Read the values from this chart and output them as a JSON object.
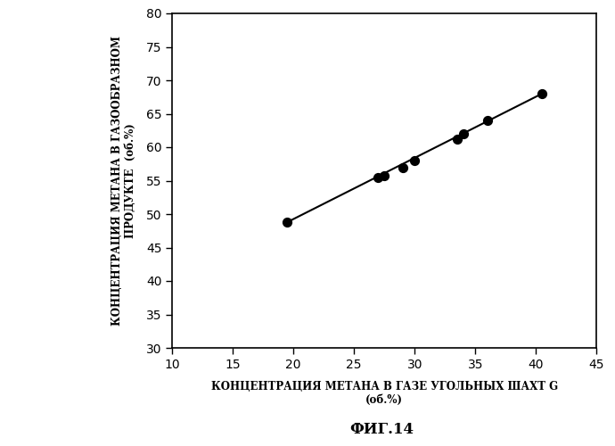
{
  "x_data": [
    19.5,
    27.0,
    27.5,
    29.0,
    30.0,
    33.5,
    34.0,
    36.0,
    40.5
  ],
  "y_data": [
    48.8,
    55.5,
    55.8,
    57.0,
    58.0,
    61.2,
    62.0,
    64.0,
    68.0
  ],
  "line_x": [
    19.5,
    40.5
  ],
  "line_y": [
    48.8,
    68.0
  ],
  "xlim": [
    10,
    45
  ],
  "ylim": [
    30,
    80
  ],
  "xticks": [
    10,
    15,
    20,
    25,
    30,
    35,
    40,
    45
  ],
  "yticks": [
    30,
    35,
    40,
    45,
    50,
    55,
    60,
    65,
    70,
    75,
    80
  ],
  "xlabel_line1": "КОНЦЕНТРАЦИЯ МЕТАНА В ГАЗЕ УГОЛЬНЫХ ШАХТ G",
  "xlabel_line2": "(об.%)",
  "ylabel_line1": "КОНЦЕНТРАЦИЯ МЕТАНА В ГАЗООБРАЗНОМ",
  "ylabel_line2": "ПРОДУКТЕ  (об.%)",
  "fig_label": "ФИГ.14",
  "line_color": "#000000",
  "dot_color": "#000000",
  "bg_color": "#ffffff",
  "font_size_labels": 8.5,
  "font_size_ticks": 10,
  "font_size_fig_label": 12
}
